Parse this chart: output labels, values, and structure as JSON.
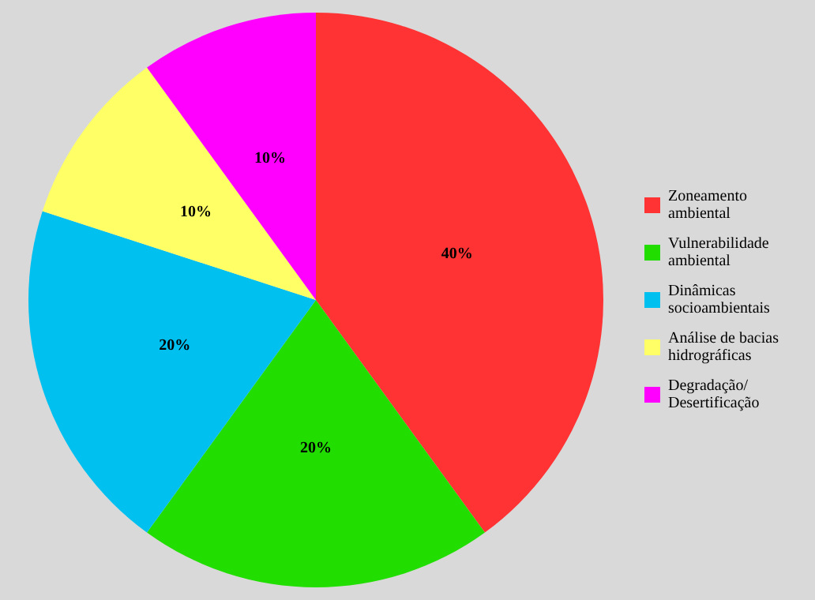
{
  "chart_data": {
    "type": "pie",
    "categories": [
      "Zoneamento ambiental",
      "Vulnerabilidade ambiental",
      "Dinâmicas socioambientais",
      "Análise de bacias hidrográficas",
      "Degradação/ Desertificação"
    ],
    "values": [
      40,
      20,
      20,
      10,
      10
    ],
    "colors": [
      "#ff3333",
      "#22dd00",
      "#00c0f0",
      "#ffff66",
      "#ff00ff"
    ],
    "value_labels": [
      "40%",
      "20%",
      "20%",
      "10%",
      "10%"
    ],
    "legend": "right"
  }
}
